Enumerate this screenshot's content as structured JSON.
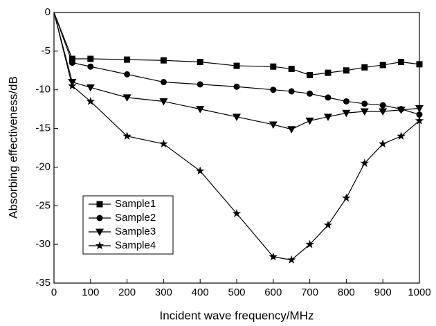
{
  "chart_data": {
    "type": "line",
    "xlabel": "Incident wave frequency/MHz",
    "ylabel": "Absorbing effectiveness/dB",
    "x": [
      0,
      50,
      100,
      200,
      300,
      400,
      500,
      600,
      650,
      700,
      750,
      800,
      850,
      900,
      950,
      1000
    ],
    "series": [
      {
        "name": "Sample1",
        "color": "#000000",
        "marker": "square",
        "values": [
          0,
          -6,
          -6,
          -6.1,
          -6.2,
          -6.4,
          -6.9,
          -7,
          -7.3,
          -8.1,
          -7.8,
          -7.5,
          -7.1,
          -6.8,
          -6.4,
          -6.7
        ]
      },
      {
        "name": "Sample2",
        "color": "#000000",
        "marker": "circle",
        "values": [
          0,
          -6.5,
          -7,
          -8,
          -9,
          -9.3,
          -9.6,
          -10,
          -10.2,
          -10.5,
          -11,
          -11.5,
          -11.8,
          -12,
          -12.5,
          -13.2
        ]
      },
      {
        "name": "Sample3",
        "color": "#000000",
        "marker": "triangle-down",
        "values": [
          0,
          -9,
          -9.7,
          -11,
          -11.5,
          -12.5,
          -13.5,
          -14.5,
          -15.1,
          -14,
          -13.5,
          -13,
          -12.8,
          -12.8,
          -12.6,
          -12.4
        ]
      },
      {
        "name": "Sample4",
        "color": "#000000",
        "marker": "star",
        "values": [
          0,
          -9.5,
          -11.5,
          -16,
          -17,
          -20.5,
          -26,
          -31.6,
          -32,
          -30,
          -27.5,
          -24,
          -19.5,
          -17,
          -16,
          -14
        ]
      }
    ],
    "xlim": [
      0,
      1000
    ],
    "xticks": [
      0,
      100,
      200,
      300,
      400,
      500,
      600,
      700,
      800,
      900,
      1000
    ],
    "ylim": [
      -35,
      0
    ],
    "yticks": [
      0,
      -5,
      -10,
      -15,
      -20,
      -25,
      -30,
      -35
    ],
    "legend": "lower left"
  }
}
